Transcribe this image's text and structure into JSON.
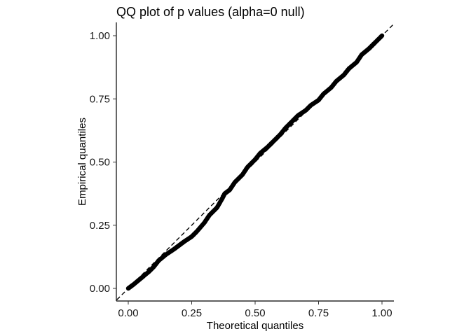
{
  "chart_data": {
    "type": "scatter",
    "title": "QQ plot of p values (alpha=0 null)",
    "xlabel": "Theoretical quantiles",
    "ylabel": "Empirical quantiles",
    "xlim": [
      0,
      1
    ],
    "ylim": [
      0,
      1
    ],
    "x_ticks": [
      "0.00",
      "0.25",
      "0.50",
      "0.75",
      "1.00"
    ],
    "y_ticks": [
      "0.00",
      "0.25",
      "0.50",
      "0.75",
      "1.00"
    ],
    "grid": false,
    "reference_line": {
      "slope": 1,
      "intercept": 0,
      "style": "dashed"
    },
    "point_color": "#000000",
    "series": [
      {
        "x": [
          0.0,
          0.02,
          0.05,
          0.08,
          0.1,
          0.12,
          0.15,
          0.18,
          0.2,
          0.22,
          0.25,
          0.27,
          0.3,
          0.32,
          0.35,
          0.37,
          0.38,
          0.4,
          0.42,
          0.45,
          0.47,
          0.5,
          0.52,
          0.55,
          0.57,
          0.6,
          0.62,
          0.65,
          0.67,
          0.7,
          0.72,
          0.75,
          0.77,
          0.8,
          0.82,
          0.85,
          0.87,
          0.9,
          0.92,
          0.95,
          0.97,
          1.0
        ],
        "y": [
          0.0,
          0.015,
          0.04,
          0.065,
          0.085,
          0.11,
          0.135,
          0.155,
          0.17,
          0.185,
          0.205,
          0.225,
          0.26,
          0.29,
          0.32,
          0.355,
          0.375,
          0.39,
          0.42,
          0.45,
          0.48,
          0.51,
          0.535,
          0.56,
          0.58,
          0.61,
          0.635,
          0.665,
          0.685,
          0.705,
          0.725,
          0.745,
          0.77,
          0.795,
          0.82,
          0.845,
          0.87,
          0.895,
          0.925,
          0.95,
          0.97,
          1.0
        ]
      }
    ]
  }
}
